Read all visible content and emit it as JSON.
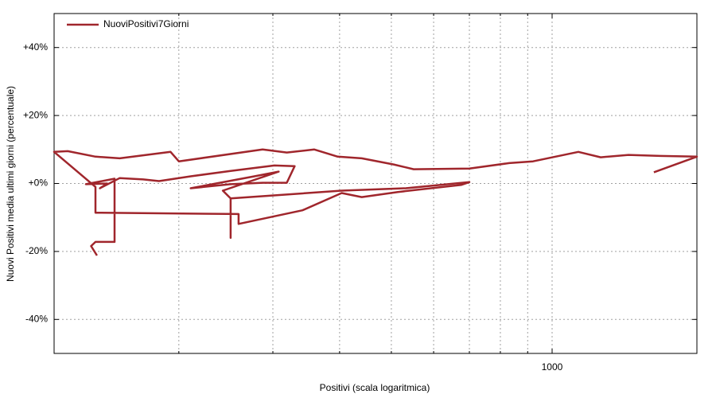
{
  "chart_data": {
    "type": "line",
    "x_label": "Positivi (scala logaritmica)",
    "y_label": "Nuovi Positivi media ultimi giorni (percentuale)",
    "x_log": true,
    "grid": true,
    "legend": "top-left",
    "xlim": [
      116.8,
      1867
    ],
    "xticks": [
      1000
    ],
    "xminorticks": [
      200,
      300,
      400,
      500,
      600,
      700,
      800,
      900
    ],
    "ylim": [
      -50,
      50
    ],
    "yticks": [
      {
        "value": -40,
        "label": "-40%"
      },
      {
        "value": -20,
        "label": "-20%"
      },
      {
        "value": 0,
        "label": "+0%"
      },
      {
        "value": 20,
        "label": "+20%"
      },
      {
        "value": 40,
        "label": "+40%"
      }
    ],
    "x": [
      140.5,
      137,
      139.6,
      151.6,
      151.6,
      134,
      146.8,
      142.3,
      155,
      171.5,
      183.6,
      210.5,
      250,
      302,
      329.6,
      318.6,
      287,
      250,
      210.5,
      277,
      307.6,
      241.8,
      250,
      250,
      250,
      403.6,
      532,
      700,
      676.5,
      514,
      440,
      403.6,
      340.8,
      258.8,
      258.8,
      139.6,
      139.6,
      116.8,
      123.9,
      139.6,
      155,
      193,
      200,
      287,
      318.6,
      358.7,
      396.8,
      440,
      505,
      550.6,
      700,
      831,
      921,
      1120,
      1233,
      1390,
      1594,
      1867,
      1551
    ],
    "series": [
      {
        "name": "NuoviPositivi7Giorni",
        "color": "#a0262c",
        "values": [
          -21.2,
          -18.4,
          -17.2,
          -17.2,
          1.4,
          -0.2,
          0,
          -1.4,
          1.6,
          1.2,
          0.7,
          2.1,
          3.7,
          5.3,
          5.1,
          0.2,
          0.2,
          -0.2,
          -1.4,
          2.1,
          3.5,
          -2.1,
          -4.4,
          -16,
          -4.4,
          -2.1,
          -1.4,
          0.4,
          -0.4,
          -2.5,
          -4.0,
          -2.8,
          -7.9,
          -11.9,
          -9,
          -8.6,
          -1,
          9.3,
          9.5,
          7.9,
          7.4,
          9.3,
          6.5,
          10.0,
          9.1,
          10.0,
          7.9,
          7.4,
          5.6,
          4.2,
          4.4,
          6.0,
          6.5,
          9.3,
          7.7,
          8.4,
          8.1,
          7.9,
          3.3
        ]
      }
    ]
  }
}
